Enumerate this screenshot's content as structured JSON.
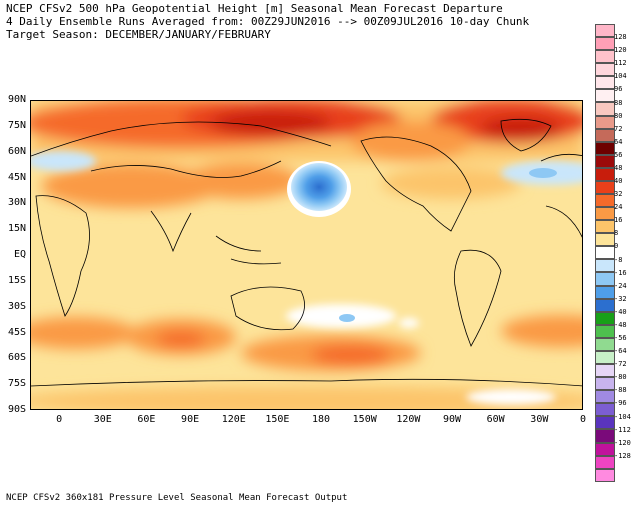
{
  "title": {
    "line1": "NCEP CFSv2 500 hPa Geopotential Height [m] Seasonal Mean Forecast Departure",
    "line2": "4 Daily Ensemble Runs Averaged from: 00Z29JUN2016 --> 00Z09JUL2016 10-day Chunk",
    "line3": "Target Season: DECEMBER/JANUARY/FEBRUARY"
  },
  "footer": "NCEP CFSv2 360x181 Pressure Level Seasonal Mean Forecast Output",
  "lat_labels": [
    "90N",
    "75N",
    "60N",
    "45N",
    "30N",
    "15N",
    "EQ",
    "15S",
    "30S",
    "45S",
    "60S",
    "75S",
    "90S"
  ],
  "lon_labels": [
    "0",
    "30E",
    "60E",
    "90E",
    "120E",
    "150E",
    "180",
    "150W",
    "120W",
    "90W",
    "60W",
    "30W",
    "0"
  ],
  "colorbar": {
    "labels": [
      "128",
      "120",
      "112",
      "104",
      "96",
      "88",
      "80",
      "72",
      "64",
      "56",
      "48",
      "40",
      "32",
      "24",
      "16",
      "8",
      "0",
      "-8",
      "-16",
      "-24",
      "-32",
      "-40",
      "-48",
      "-56",
      "-64",
      "-72",
      "-80",
      "-88",
      "-96",
      "-104",
      "-112",
      "-120",
      "-128"
    ],
    "colors": [
      "#ffb6c8",
      "#ff9fb6",
      "#ffc2cb",
      "#ffd6dc",
      "#ffe6ea",
      "#fff0f2",
      "#f8c8c0",
      "#e89a8a",
      "#c56a5a",
      "#6e0000",
      "#9b0a0a",
      "#c81d0c",
      "#e8401a",
      "#f56a2a",
      "#fa9a45",
      "#fcc46a",
      "#fde49a",
      "#ffffff",
      "#c9e6fb",
      "#8ec8f4",
      "#4f9ee8",
      "#2c6fcf",
      "#18a018",
      "#4ec04e",
      "#90da90",
      "#c8f0c8",
      "#e6d6f6",
      "#c8b4ee",
      "#a08ae2",
      "#7c5ed2",
      "#5a34be",
      "#7a0a7a",
      "#c0129c",
      "#ee44c2",
      "#ff8ae0"
    ]
  }
}
